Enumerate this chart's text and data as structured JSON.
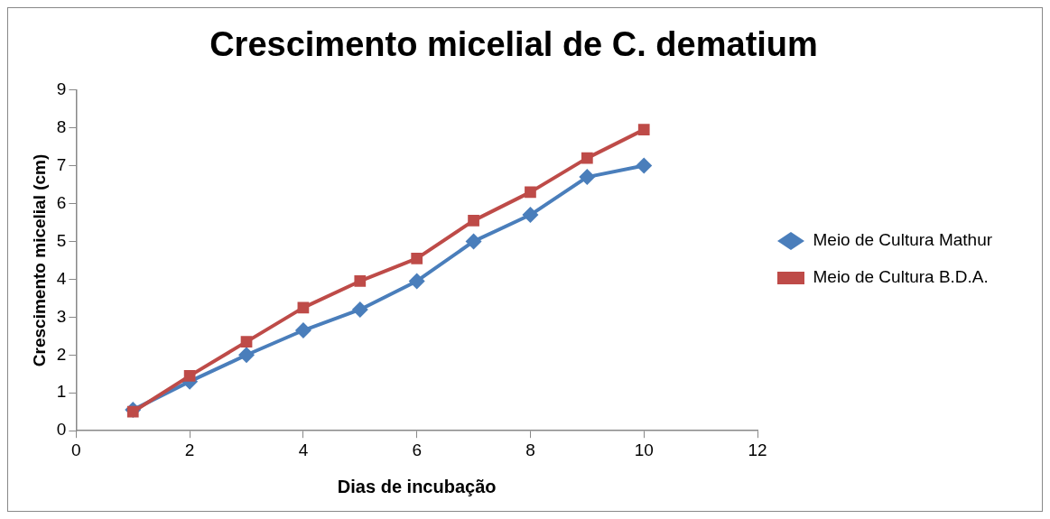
{
  "chart_data": {
    "type": "line",
    "title": "Crescimento micelial de C. dematium",
    "xlabel": "Dias de incubação",
    "ylabel": "Crescimento micelial (cm)",
    "x": [
      1,
      2,
      3,
      4,
      5,
      6,
      7,
      8,
      9,
      10
    ],
    "series": [
      {
        "name": "Meio de Cultura Mathur",
        "color": "#4a7ebb",
        "marker": "diamond",
        "values": [
          0.55,
          1.3,
          2.0,
          2.65,
          3.2,
          3.95,
          5.0,
          5.7,
          6.7,
          7.0
        ]
      },
      {
        "name": "Meio de Cultura B.D.A.",
        "color": "#be4b48",
        "marker": "square",
        "values": [
          0.5,
          1.45,
          2.35,
          3.25,
          3.95,
          4.55,
          5.55,
          6.3,
          7.2,
          7.95
        ]
      }
    ],
    "xlim": [
      0,
      12
    ],
    "xticks": [
      0,
      2,
      4,
      6,
      8,
      10,
      12
    ],
    "ylim": [
      0,
      9
    ],
    "yticks": [
      0,
      1,
      2,
      3,
      4,
      5,
      6,
      7,
      8,
      9
    ],
    "grid": false,
    "legend": "right",
    "line_style": "solid"
  }
}
